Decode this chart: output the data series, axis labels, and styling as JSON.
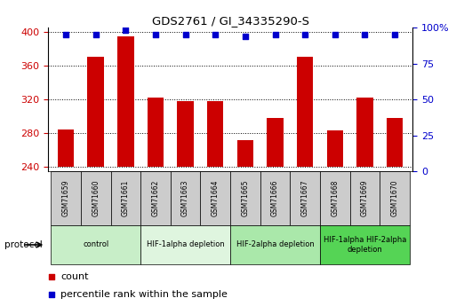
{
  "title": "GDS2761 / GI_34335290-S",
  "samples": [
    "GSM71659",
    "GSM71660",
    "GSM71661",
    "GSM71662",
    "GSM71663",
    "GSM71664",
    "GSM71665",
    "GSM71666",
    "GSM71667",
    "GSM71668",
    "GSM71669",
    "GSM71670"
  ],
  "counts": [
    285,
    370,
    395,
    322,
    318,
    318,
    272,
    298,
    370,
    283,
    322,
    298
  ],
  "percentile_ranks": [
    95,
    95,
    98,
    95,
    95,
    95,
    94,
    95,
    95,
    95,
    95,
    95
  ],
  "ylim_left": [
    235,
    405
  ],
  "ylim_right": [
    0,
    100
  ],
  "yticks_left": [
    240,
    280,
    320,
    360,
    400
  ],
  "yticks_right": [
    0,
    25,
    50,
    75,
    100
  ],
  "bar_color": "#cc0000",
  "dot_color": "#0000cc",
  "protocol_groups": [
    {
      "label": "control",
      "start": 0,
      "end": 2,
      "color": "#c8eec8"
    },
    {
      "label": "HIF-1alpha depletion",
      "start": 3,
      "end": 5,
      "color": "#dff5df"
    },
    {
      "label": "HIF-2alpha depletion",
      "start": 6,
      "end": 8,
      "color": "#aae8aa"
    },
    {
      "label": "HIF-1alpha HIF-2alpha\ndepletion",
      "start": 9,
      "end": 11,
      "color": "#55d455"
    }
  ],
  "legend_count_label": "count",
  "legend_pct_label": "percentile rank within the sample",
  "protocol_label": "protocol",
  "tick_area_color": "#cccccc"
}
